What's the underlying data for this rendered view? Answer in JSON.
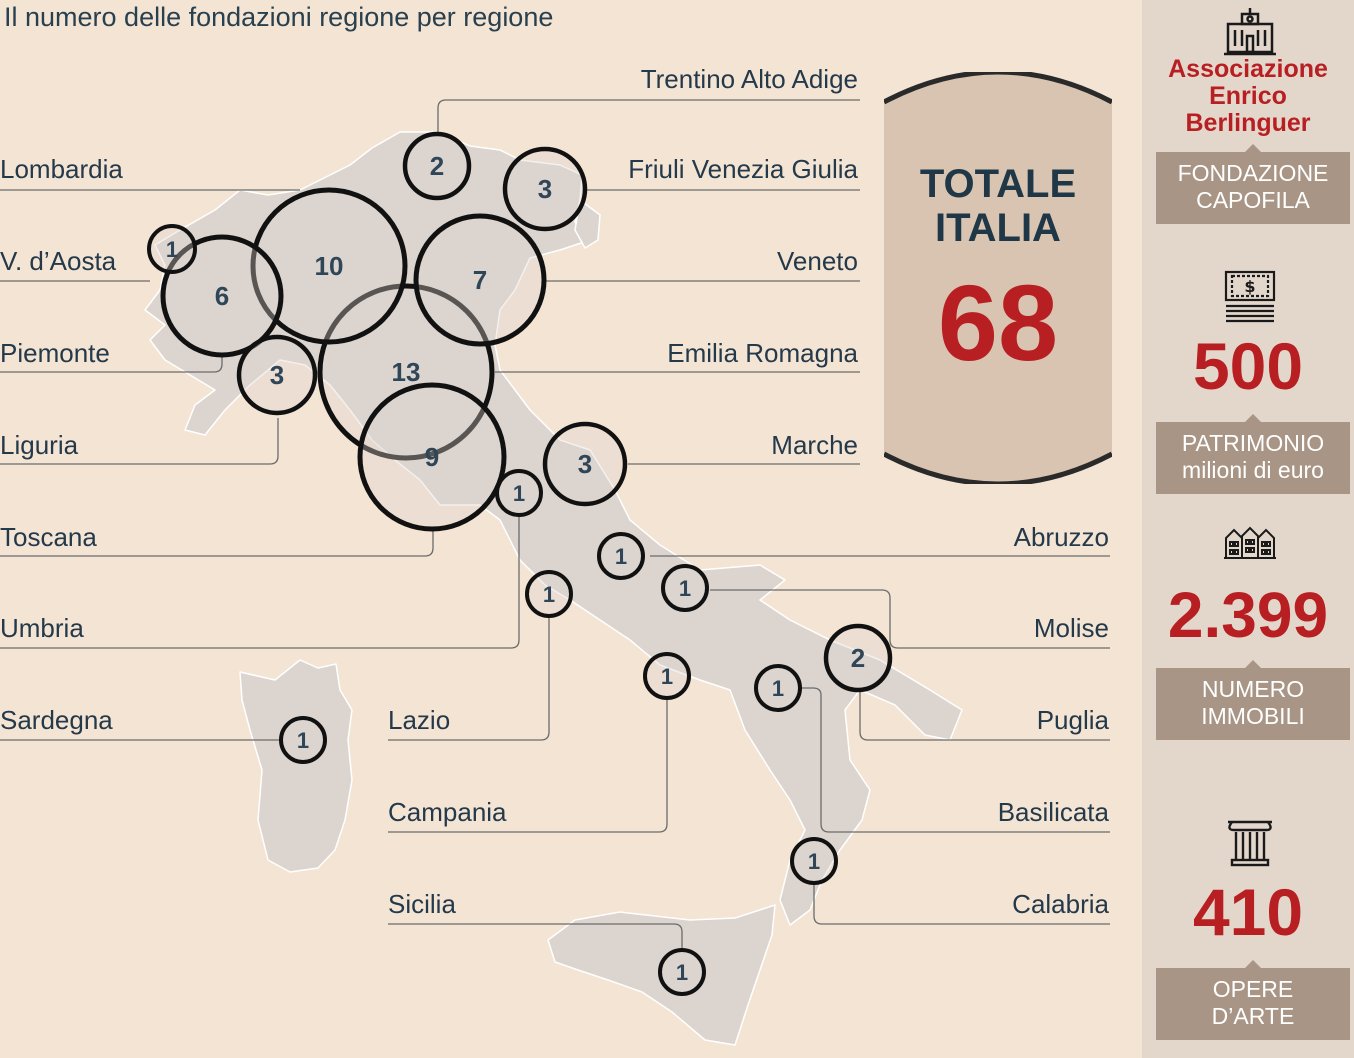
{
  "title": "Il numero delle fondazioni regione per regione",
  "regions": [
    {
      "name": "Trentino Alto Adige",
      "count": 2
    },
    {
      "name": "Lombardia",
      "count": 10
    },
    {
      "name": "Friuli Venezia Giulia",
      "count": 3
    },
    {
      "name": "V. d’Aosta",
      "count": 1
    },
    {
      "name": "Veneto",
      "count": 7
    },
    {
      "name": "Piemonte",
      "count": 6
    },
    {
      "name": "Emilia Romagna",
      "count": 13
    },
    {
      "name": "Liguria",
      "count": 3
    },
    {
      "name": "Marche",
      "count": 3
    },
    {
      "name": "Toscana",
      "count": 9
    },
    {
      "name": "Abruzzo",
      "count": 1
    },
    {
      "name": "Umbria",
      "count": 1
    },
    {
      "name": "Molise",
      "count": 1
    },
    {
      "name": "Sardegna",
      "count": 1
    },
    {
      "name": "Lazio",
      "count": 1
    },
    {
      "name": "Puglia",
      "count": 2
    },
    {
      "name": "Campania",
      "count": 1
    },
    {
      "name": "Basilicata",
      "count": 1
    },
    {
      "name": "Sicilia",
      "count": 1
    },
    {
      "name": "Calabria",
      "count": 1
    }
  ],
  "totale": {
    "label_line1": "TOTALE",
    "label_line2": "ITALIA",
    "value": "68"
  },
  "sidebar": {
    "org_line1": "Associazione",
    "org_line2": "Enrico",
    "org_line3": "Berlinguer",
    "org_tag_line1": "FONDAZIONE",
    "org_tag_line2": "CAPOFILA",
    "stats": [
      {
        "icon": "banknote-icon",
        "value": "500",
        "label_line1": "PATRIMONIO",
        "label_line2": "milioni di euro"
      },
      {
        "icon": "buildings-icon",
        "value": "2.399",
        "label_line1": "NUMERO",
        "label_line2": "IMMOBILI"
      },
      {
        "icon": "column-icon",
        "value": "410",
        "label_line1": "OPERE",
        "label_line2": "D’ARTE"
      }
    ]
  },
  "colors": {
    "accent": "#b81f22",
    "text": "#24394a",
    "land": "#dcd5cf",
    "background": "#f4e4d4",
    "sidebar": "#e3d7cc",
    "tag": "#a89585"
  }
}
